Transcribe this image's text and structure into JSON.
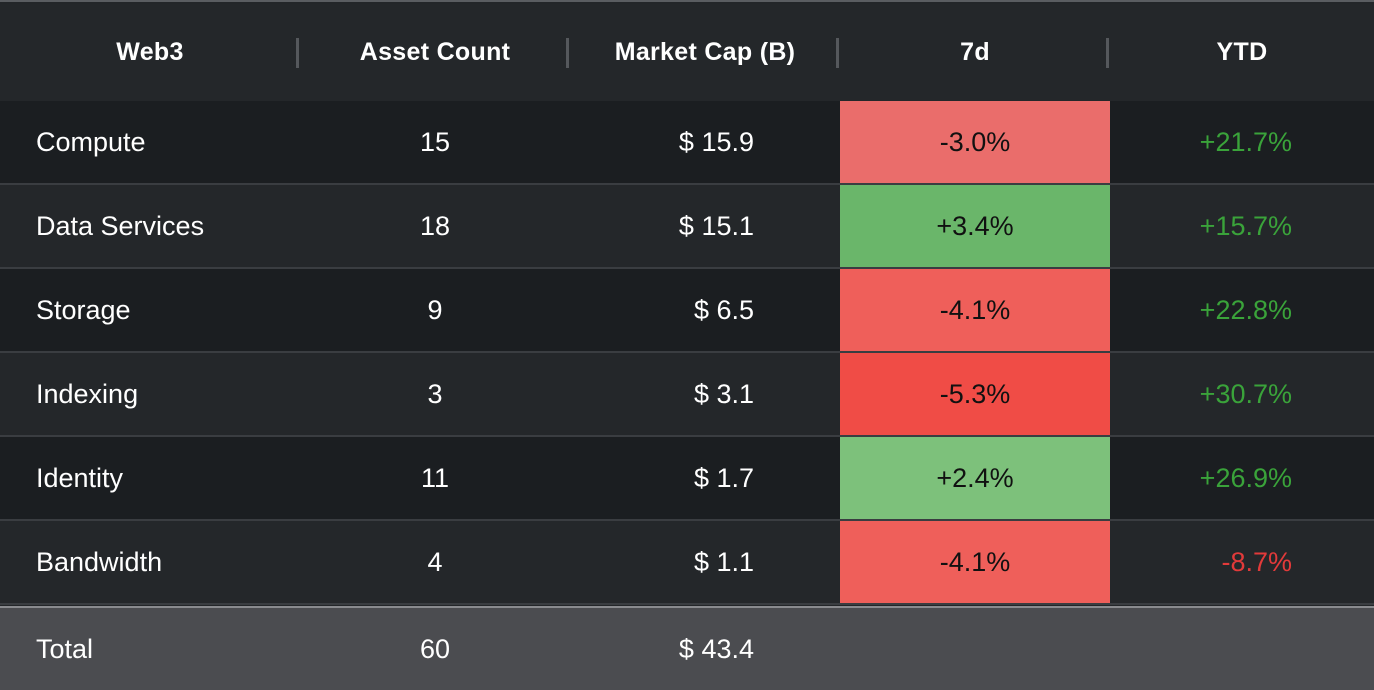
{
  "chart_data": {
    "type": "table",
    "columns": [
      "Web3",
      "Asset Count",
      "Market Cap (B)",
      "7d",
      "YTD"
    ],
    "rows": [
      {
        "category": "Compute",
        "asset_count": "15",
        "market_cap": "$ 15.9",
        "d7": "-3.0%",
        "d7_value": -3.0,
        "d7_color": "#ea6d6b",
        "ytd": "+21.7%",
        "ytd_value": 21.7
      },
      {
        "category": "Data Services",
        "asset_count": "18",
        "market_cap": "$ 15.1",
        "d7": "+3.4%",
        "d7_value": 3.4,
        "d7_color": "#6ab66a",
        "ytd": "+15.7%",
        "ytd_value": 15.7
      },
      {
        "category": "Storage",
        "asset_count": "9",
        "market_cap": "$ 6.5",
        "d7": "-4.1%",
        "d7_value": -4.1,
        "d7_color": "#ef5f5a",
        "ytd": "+22.8%",
        "ytd_value": 22.8
      },
      {
        "category": "Indexing",
        "asset_count": "3",
        "market_cap": "$ 3.1",
        "d7": "-5.3%",
        "d7_value": -5.3,
        "d7_color": "#f04c46",
        "ytd": "+30.7%",
        "ytd_value": 30.7
      },
      {
        "category": "Identity",
        "asset_count": "11",
        "market_cap": "$ 1.7",
        "d7": "+2.4%",
        "d7_value": 2.4,
        "d7_color": "#7dc17b",
        "ytd": "+26.9%",
        "ytd_value": 26.9
      },
      {
        "category": "Bandwidth",
        "asset_count": "4",
        "market_cap": "$ 1.1",
        "d7": "-4.1%",
        "d7_value": -4.1,
        "d7_color": "#ef5f5a",
        "ytd": "-8.7%",
        "ytd_value": -8.7
      }
    ],
    "total": {
      "label": "Total",
      "asset_count": "60",
      "market_cap": "$ 43.4"
    }
  },
  "colors": {
    "positive_text": "#3aa33a",
    "negative_text": "#e23a3a",
    "total_row": "#4b4c50",
    "background": "#232629"
  }
}
